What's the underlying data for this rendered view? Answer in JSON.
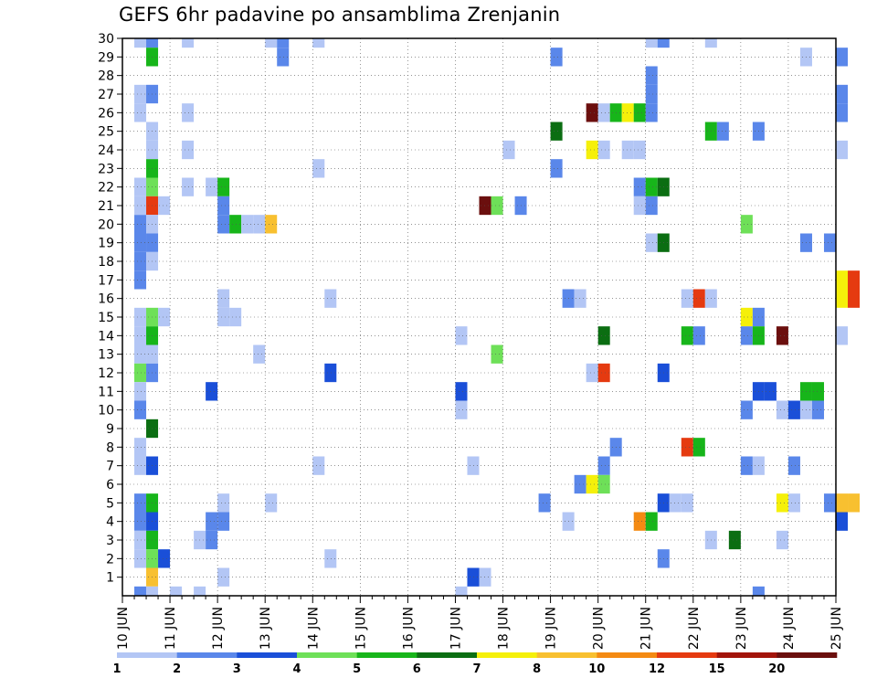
{
  "chart_data": {
    "type": "heatmap",
    "title": "GEFS 6hr padavine po ansamblima Zrenjanin",
    "xlabel": "",
    "ylabel": "",
    "x_ticks": [
      "10 JUN",
      "11 JUN",
      "12 JUN",
      "13 JUN",
      "14 JUN",
      "15 JUN",
      "16 JUN",
      "17 JUN",
      "18 JUN",
      "19 JUN",
      "20 JUN",
      "21 JUN",
      "22 JUN",
      "23 JUN",
      "24 JUN",
      "25 JUN"
    ],
    "y_ticks": [
      1,
      2,
      3,
      4,
      5,
      6,
      7,
      8,
      9,
      10,
      11,
      12,
      13,
      14,
      15,
      16,
      17,
      18,
      19,
      20,
      21,
      22,
      23,
      24,
      25,
      26,
      27,
      28,
      29,
      30
    ],
    "x_range": [
      "10 JUN 00",
      "25 JUN 00"
    ],
    "y_range": [
      0,
      30
    ],
    "grid": true,
    "colorbar": {
      "tick_labels": [
        "1",
        "2",
        "3",
        "4",
        "5",
        "6",
        "7",
        "8",
        "10",
        "12",
        "15",
        "20"
      ],
      "colors": [
        "#b3c6f5",
        "#5a87ea",
        "#1a4fd8",
        "#6ee058",
        "#17b51a",
        "#0b6e12",
        "#f5f00a",
        "#f8c030",
        "#f48a12",
        "#e53a10",
        "#a3140a",
        "#6b0f0e"
      ]
    },
    "cells": [
      {
        "time": "10 JUN 06",
        "member": 30,
        "value": 1.5
      },
      {
        "time": "10 JUN 12",
        "member": 30,
        "value": 2.5
      },
      {
        "time": "11 JUN 06",
        "member": 30,
        "value": 1.5
      },
      {
        "time": "13 JUN 00",
        "member": 30,
        "value": 1.5
      },
      {
        "time": "13 JUN 06",
        "member": 30,
        "value": 2.5
      },
      {
        "time": "14 JUN 00",
        "member": 30,
        "value": 1.5
      },
      {
        "time": "21 JUN 00",
        "member": 30,
        "value": 1.5
      },
      {
        "time": "21 JUN 06",
        "member": 30,
        "value": 2.5
      },
      {
        "time": "22 JUN 06",
        "member": 30,
        "value": 1.5
      },
      {
        "time": "10 JUN 12",
        "member": 29,
        "value": 5.5
      },
      {
        "time": "13 JUN 06",
        "member": 29,
        "value": 2.5
      },
      {
        "time": "19 JUN 00",
        "member": 29,
        "value": 2.5
      },
      {
        "time": "24 JUN 06",
        "member": 29,
        "value": 1.5
      },
      {
        "time": "25 JUN 00",
        "member": 29,
        "value": 2.5
      },
      {
        "time": "21 JUN 00",
        "member": 28,
        "value": 2.5
      },
      {
        "time": "10 JUN 06",
        "member": 27,
        "value": 1.5
      },
      {
        "time": "10 JUN 12",
        "member": 27,
        "value": 2.5
      },
      {
        "time": "21 JUN 00",
        "member": 27,
        "value": 2.5
      },
      {
        "time": "25 JUN 00",
        "member": 27,
        "value": 2.5
      },
      {
        "time": "10 JUN 06",
        "member": 26,
        "value": 1.5
      },
      {
        "time": "11 JUN 06",
        "member": 26,
        "value": 1.5
      },
      {
        "time": "19 JUN 18",
        "member": 26,
        "value": 21
      },
      {
        "time": "20 JUN 00",
        "member": 26,
        "value": 1.5
      },
      {
        "time": "20 JUN 06",
        "member": 26,
        "value": 5.5
      },
      {
        "time": "20 JUN 12",
        "member": 26,
        "value": 7.5
      },
      {
        "time": "20 JUN 18",
        "member": 26,
        "value": 5.5
      },
      {
        "time": "21 JUN 00",
        "member": 26,
        "value": 2.5
      },
      {
        "time": "25 JUN 00",
        "member": 26,
        "value": 2.5
      },
      {
        "time": "10 JUN 12",
        "member": 25,
        "value": 1.5
      },
      {
        "time": "19 JUN 00",
        "member": 25,
        "value": 6.5
      },
      {
        "time": "22 JUN 06",
        "member": 25,
        "value": 5.5
      },
      {
        "time": "22 JUN 12",
        "member": 25,
        "value": 2.5
      },
      {
        "time": "23 JUN 06",
        "member": 25,
        "value": 2.5
      },
      {
        "time": "10 JUN 12",
        "member": 24,
        "value": 1.5
      },
      {
        "time": "11 JUN 06",
        "member": 24,
        "value": 1.5
      },
      {
        "time": "18 JUN 00",
        "member": 24,
        "value": 1.5
      },
      {
        "time": "19 JUN 18",
        "member": 24,
        "value": 7.5
      },
      {
        "time": "20 JUN 00",
        "member": 24,
        "value": 1.5
      },
      {
        "time": "20 JUN 12",
        "member": 24,
        "value": 1.5
      },
      {
        "time": "20 JUN 18",
        "member": 24,
        "value": 1.5
      },
      {
        "time": "25 JUN 00",
        "member": 24,
        "value": 1.5
      },
      {
        "time": "10 JUN 12",
        "member": 23,
        "value": 5.5
      },
      {
        "time": "14 JUN 00",
        "member": 23,
        "value": 1.5
      },
      {
        "time": "19 JUN 00",
        "member": 23,
        "value": 2.5
      },
      {
        "time": "10 JUN 06",
        "member": 22,
        "value": 1.5
      },
      {
        "time": "10 JUN 12",
        "member": 22,
        "value": 4.5
      },
      {
        "time": "11 JUN 06",
        "member": 22,
        "value": 1.5
      },
      {
        "time": "11 JUN 18",
        "member": 22,
        "value": 1.5
      },
      {
        "time": "12 JUN 00",
        "member": 22,
        "value": 5.5
      },
      {
        "time": "20 JUN 18",
        "member": 22,
        "value": 2.5
      },
      {
        "time": "21 JUN 00",
        "member": 22,
        "value": 5.5
      },
      {
        "time": "21 JUN 06",
        "member": 22,
        "value": 6.5
      },
      {
        "time": "10 JUN 06",
        "member": 21,
        "value": 1.5
      },
      {
        "time": "10 JUN 12",
        "member": 21,
        "value": 13
      },
      {
        "time": "10 JUN 18",
        "member": 21,
        "value": 1.5
      },
      {
        "time": "12 JUN 00",
        "member": 21,
        "value": 2.5
      },
      {
        "time": "17 JUN 12",
        "member": 21,
        "value": 21
      },
      {
        "time": "17 JUN 18",
        "member": 21,
        "value": 4.5
      },
      {
        "time": "18 JUN 06",
        "member": 21,
        "value": 2.5
      },
      {
        "time": "20 JUN 18",
        "member": 21,
        "value": 1.5
      },
      {
        "time": "21 JUN 00",
        "member": 21,
        "value": 2.5
      },
      {
        "time": "10 JUN 06",
        "member": 20,
        "value": 2.5
      },
      {
        "time": "10 JUN 12",
        "member": 20,
        "value": 1.5
      },
      {
        "time": "12 JUN 00",
        "member": 20,
        "value": 2.5
      },
      {
        "time": "12 JUN 06",
        "member": 20,
        "value": 5.5
      },
      {
        "time": "12 JUN 12",
        "member": 20,
        "value": 1.5
      },
      {
        "time": "12 JUN 18",
        "member": 20,
        "value": 1.5
      },
      {
        "time": "13 JUN 00",
        "member": 20,
        "value": 9
      },
      {
        "time": "23 JUN 00",
        "member": 20,
        "value": 4.5
      },
      {
        "time": "10 JUN 06",
        "member": 19,
        "value": 2.5
      },
      {
        "time": "10 JUN 12",
        "member": 19,
        "value": 2.5
      },
      {
        "time": "21 JUN 00",
        "member": 19,
        "value": 1.5
      },
      {
        "time": "21 JUN 06",
        "member": 19,
        "value": 6.5
      },
      {
        "time": "24 JUN 06",
        "member": 19,
        "value": 2.5
      },
      {
        "time": "24 JUN 18",
        "member": 19,
        "value": 2.5
      },
      {
        "time": "10 JUN 06",
        "member": 18,
        "value": 2.5
      },
      {
        "time": "10 JUN 12",
        "member": 18,
        "value": 1.5
      },
      {
        "time": "10 JUN 06",
        "member": 17,
        "value": 2.5
      },
      {
        "time": "25 JUN 00",
        "member": 17,
        "value": 7.5
      },
      {
        "time": "25 JUN 06",
        "member": 17,
        "value": 13
      },
      {
        "time": "12 JUN 00",
        "member": 16,
        "value": 1.5
      },
      {
        "time": "14 JUN 06",
        "member": 16,
        "value": 1.5
      },
      {
        "time": "19 JUN 06",
        "member": 16,
        "value": 2.5
      },
      {
        "time": "19 JUN 12",
        "member": 16,
        "value": 1.5
      },
      {
        "time": "21 JUN 18",
        "member": 16,
        "value": 1.5
      },
      {
        "time": "22 JUN 00",
        "member": 16,
        "value": 13
      },
      {
        "time": "22 JUN 06",
        "member": 16,
        "value": 1.5
      },
      {
        "time": "25 JUN 00",
        "member": 16,
        "value": 7.5
      },
      {
        "time": "25 JUN 06",
        "member": 16,
        "value": 13
      },
      {
        "time": "10 JUN 06",
        "member": 15,
        "value": 1.5
      },
      {
        "time": "10 JUN 12",
        "member": 15,
        "value": 4.5
      },
      {
        "time": "10 JUN 18",
        "member": 15,
        "value": 1.5
      },
      {
        "time": "12 JUN 00",
        "member": 15,
        "value": 1.5
      },
      {
        "time": "12 JUN 06",
        "member": 15,
        "value": 1.5
      },
      {
        "time": "23 JUN 00",
        "member": 15,
        "value": 7.5
      },
      {
        "time": "23 JUN 06",
        "member": 15,
        "value": 2.5
      },
      {
        "time": "10 JUN 06",
        "member": 14,
        "value": 1.5
      },
      {
        "time": "10 JUN 12",
        "member": 14,
        "value": 5.5
      },
      {
        "time": "17 JUN 00",
        "member": 14,
        "value": 1.5
      },
      {
        "time": "20 JUN 00",
        "member": 14,
        "value": 6.5
      },
      {
        "time": "21 JUN 18",
        "member": 14,
        "value": 5.5
      },
      {
        "time": "22 JUN 00",
        "member": 14,
        "value": 2.5
      },
      {
        "time": "23 JUN 00",
        "member": 14,
        "value": 2.5
      },
      {
        "time": "23 JUN 06",
        "member": 14,
        "value": 5.5
      },
      {
        "time": "23 JUN 18",
        "member": 14,
        "value": 21
      },
      {
        "time": "25 JUN 00",
        "member": 14,
        "value": 1.5
      },
      {
        "time": "10 JUN 06",
        "member": 13,
        "value": 1.5
      },
      {
        "time": "10 JUN 12",
        "member": 13,
        "value": 1.5
      },
      {
        "time": "12 JUN 18",
        "member": 13,
        "value": 1.5
      },
      {
        "time": "17 JUN 18",
        "member": 13,
        "value": 4.5
      },
      {
        "time": "10 JUN 06",
        "member": 12,
        "value": 4.5
      },
      {
        "time": "10 JUN 12",
        "member": 12,
        "value": 2.5
      },
      {
        "time": "14 JUN 06",
        "member": 12,
        "value": 3.5
      },
      {
        "time": "19 JUN 18",
        "member": 12,
        "value": 1.5
      },
      {
        "time": "20 JUN 00",
        "member": 12,
        "value": 13
      },
      {
        "time": "21 JUN 06",
        "member": 12,
        "value": 3.5
      },
      {
        "time": "10 JUN 06",
        "member": 11,
        "value": 1.5
      },
      {
        "time": "11 JUN 18",
        "member": 11,
        "value": 3.5
      },
      {
        "time": "17 JUN 00",
        "member": 11,
        "value": 3.5
      },
      {
        "time": "23 JUN 06",
        "member": 11,
        "value": 3.5
      },
      {
        "time": "23 JUN 12",
        "member": 11,
        "value": 3.5
      },
      {
        "time": "24 JUN 06",
        "member": 11,
        "value": 5.5
      },
      {
        "time": "24 JUN 12",
        "member": 11,
        "value": 5.5
      },
      {
        "time": "10 JUN 06",
        "member": 10,
        "value": 2.5
      },
      {
        "time": "17 JUN 00",
        "member": 10,
        "value": 1.5
      },
      {
        "time": "23 JUN 00",
        "member": 10,
        "value": 2.5
      },
      {
        "time": "23 JUN 18",
        "member": 10,
        "value": 1.5
      },
      {
        "time": "24 JUN 00",
        "member": 10,
        "value": 3.5
      },
      {
        "time": "24 JUN 06",
        "member": 10,
        "value": 1.5
      },
      {
        "time": "24 JUN 12",
        "member": 10,
        "value": 2.5
      },
      {
        "time": "10 JUN 12",
        "member": 9,
        "value": 6.5
      },
      {
        "time": "10 JUN 06",
        "member": 8,
        "value": 1.5
      },
      {
        "time": "20 JUN 06",
        "member": 8,
        "value": 2.5
      },
      {
        "time": "21 JUN 18",
        "member": 8,
        "value": 13
      },
      {
        "time": "22 JUN 00",
        "member": 8,
        "value": 5.5
      },
      {
        "time": "10 JUN 06",
        "member": 7,
        "value": 1.5
      },
      {
        "time": "10 JUN 12",
        "member": 7,
        "value": 3.5
      },
      {
        "time": "14 JUN 00",
        "member": 7,
        "value": 1.5
      },
      {
        "time": "17 JUN 06",
        "member": 7,
        "value": 1.5
      },
      {
        "time": "20 JUN 00",
        "member": 7,
        "value": 2.5
      },
      {
        "time": "23 JUN 00",
        "member": 7,
        "value": 2.5
      },
      {
        "time": "23 JUN 06",
        "member": 7,
        "value": 1.5
      },
      {
        "time": "24 JUN 00",
        "member": 7,
        "value": 2.5
      },
      {
        "time": "19 JUN 12",
        "member": 6,
        "value": 2.5
      },
      {
        "time": "19 JUN 18",
        "member": 6,
        "value": 7.5
      },
      {
        "time": "20 JUN 00",
        "member": 6,
        "value": 4.5
      },
      {
        "time": "10 JUN 06",
        "member": 5,
        "value": 2.5
      },
      {
        "time": "10 JUN 12",
        "member": 5,
        "value": 5.5
      },
      {
        "time": "12 JUN 00",
        "member": 5,
        "value": 1.5
      },
      {
        "time": "13 JUN 00",
        "member": 5,
        "value": 1.5
      },
      {
        "time": "18 JUN 18",
        "member": 5,
        "value": 2.5
      },
      {
        "time": "21 JUN 06",
        "member": 5,
        "value": 3.5
      },
      {
        "time": "21 JUN 12",
        "member": 5,
        "value": 1.5
      },
      {
        "time": "21 JUN 18",
        "member": 5,
        "value": 1.5
      },
      {
        "time": "23 JUN 18",
        "member": 5,
        "value": 7.5
      },
      {
        "time": "24 JUN 00",
        "member": 5,
        "value": 1.5
      },
      {
        "time": "24 JUN 18",
        "member": 5,
        "value": 2.5
      },
      {
        "time": "25 JUN 00",
        "member": 5,
        "value": 9
      },
      {
        "time": "25 JUN 06",
        "member": 5,
        "value": 9
      },
      {
        "time": "10 JUN 06",
        "member": 4,
        "value": 2.5
      },
      {
        "time": "10 JUN 12",
        "member": 4,
        "value": 3.5
      },
      {
        "time": "11 JUN 18",
        "member": 4,
        "value": 2.5
      },
      {
        "time": "12 JUN 00",
        "member": 4,
        "value": 2.5
      },
      {
        "time": "19 JUN 06",
        "member": 4,
        "value": 1.5
      },
      {
        "time": "20 JUN 18",
        "member": 4,
        "value": 11
      },
      {
        "time": "21 JUN 00",
        "member": 4,
        "value": 5.5
      },
      {
        "time": "25 JUN 00",
        "member": 4,
        "value": 3.5
      },
      {
        "time": "10 JUN 06",
        "member": 3,
        "value": 1.5
      },
      {
        "time": "10 JUN 12",
        "member": 3,
        "value": 5.5
      },
      {
        "time": "11 JUN 12",
        "member": 3,
        "value": 1.5
      },
      {
        "time": "11 JUN 18",
        "member": 3,
        "value": 2.5
      },
      {
        "time": "22 JUN 06",
        "member": 3,
        "value": 1.5
      },
      {
        "time": "22 JUN 18",
        "member": 3,
        "value": 6.5
      },
      {
        "time": "23 JUN 18",
        "member": 3,
        "value": 1.5
      },
      {
        "time": "10 JUN 06",
        "member": 2,
        "value": 1.5
      },
      {
        "time": "10 JUN 12",
        "member": 2,
        "value": 4.5
      },
      {
        "time": "10 JUN 18",
        "member": 2,
        "value": 3.5
      },
      {
        "time": "14 JUN 06",
        "member": 2,
        "value": 1.5
      },
      {
        "time": "21 JUN 06",
        "member": 2,
        "value": 2.5
      },
      {
        "time": "10 JUN 12",
        "member": 1,
        "value": 9
      },
      {
        "time": "12 JUN 00",
        "member": 1,
        "value": 1.5
      },
      {
        "time": "17 JUN 06",
        "member": 1,
        "value": 3.5
      },
      {
        "time": "17 JUN 12",
        "member": 1,
        "value": 1.5
      },
      {
        "time": "10 JUN 06",
        "member": 0,
        "value": 2.5
      },
      {
        "time": "10 JUN 12",
        "member": 0,
        "value": 1.5
      },
      {
        "time": "11 JUN 00",
        "member": 0,
        "value": 1.5
      },
      {
        "time": "11 JUN 12",
        "member": 0,
        "value": 1.5
      },
      {
        "time": "17 JUN 00",
        "member": 0,
        "value": 1.5
      },
      {
        "time": "23 JUN 06",
        "member": 0,
        "value": 2.5
      }
    ]
  }
}
